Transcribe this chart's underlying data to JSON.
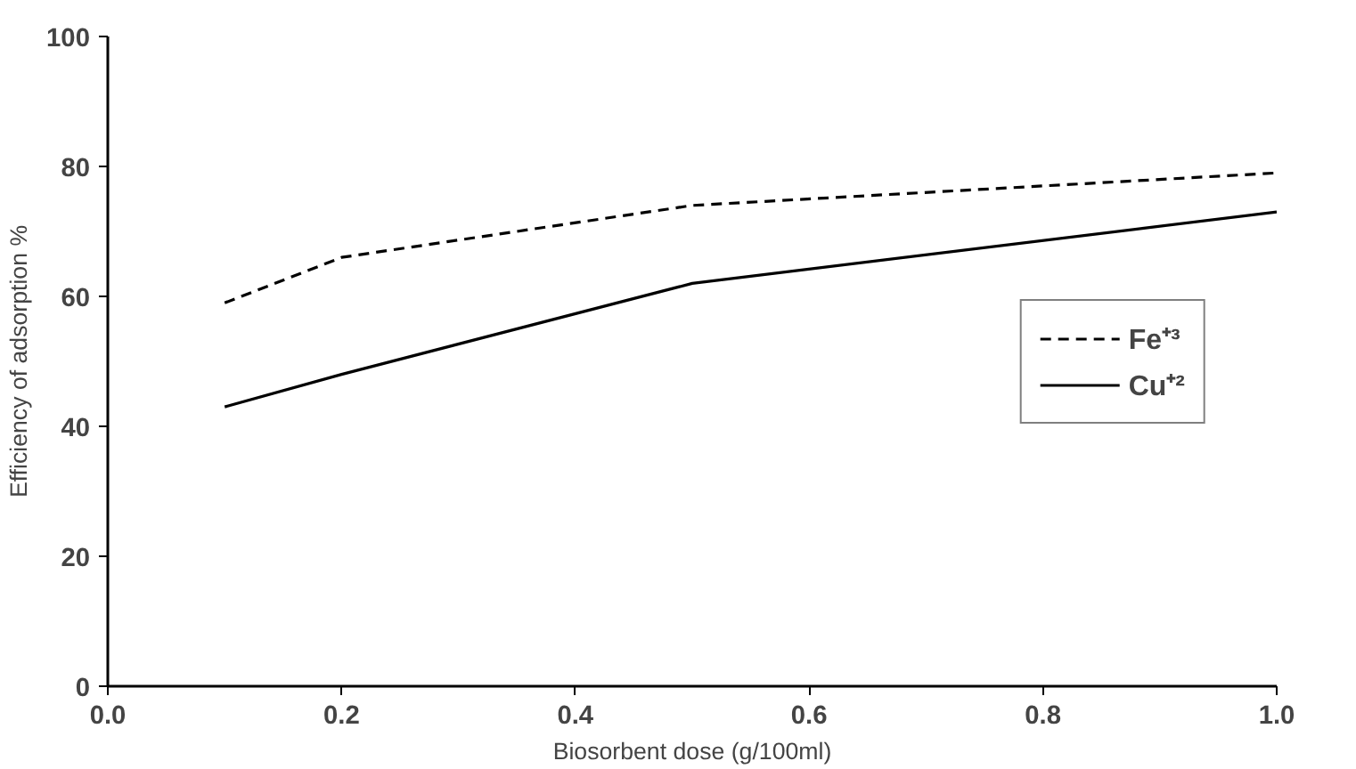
{
  "chart_data": {
    "type": "line",
    "xlabel": "Biosorbent dose (g/100ml)",
    "ylabel": "Efficiency of adsorption %",
    "x": [
      0.1,
      0.2,
      0.5,
      1.0
    ],
    "series": [
      {
        "name": "Fe⁺³",
        "color": "#000000",
        "line_style": "dashed",
        "values": [
          59,
          66,
          74,
          79
        ]
      },
      {
        "name": "Cu⁺²",
        "color": "#000000",
        "line_style": "solid",
        "values": [
          43,
          48,
          62,
          73
        ]
      }
    ],
    "xlim": [
      0,
      1
    ],
    "xticks": [
      {
        "value": 0,
        "label": "0.0"
      },
      0.2,
      0.4,
      0.6,
      0.8,
      {
        "value": 1,
        "label": "1.0"
      }
    ],
    "ylim": [
      0,
      100
    ],
    "yticks": [
      0,
      20,
      40,
      60,
      80,
      100
    ],
    "grid": false,
    "legend": "right",
    "marker": "none"
  }
}
